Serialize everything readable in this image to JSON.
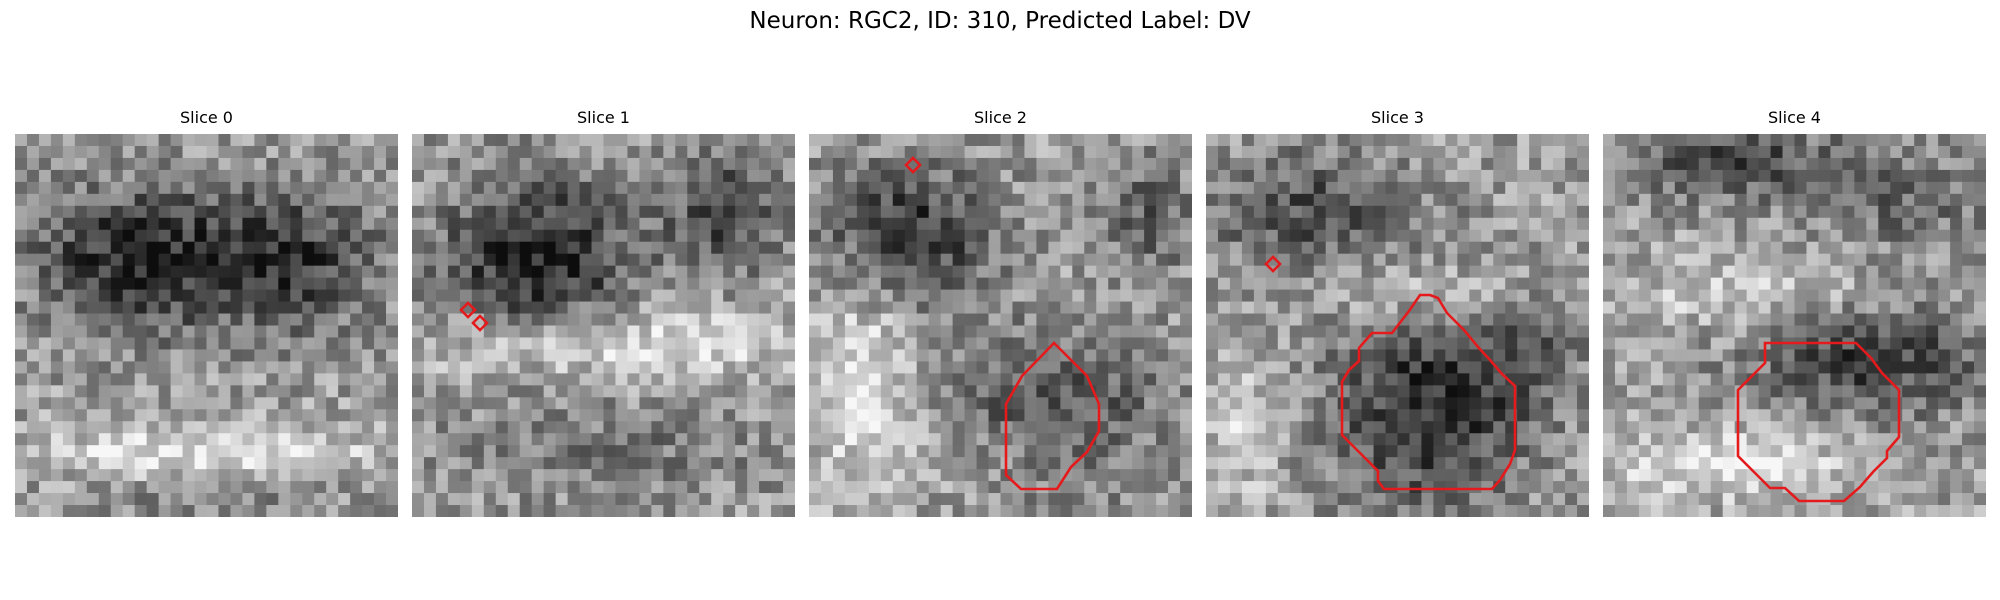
{
  "figure": {
    "title": "Neuron: RGC2, ID: 310, Predicted Label: DV"
  },
  "panels": [
    {
      "title": "Slice 0",
      "has_contour": false,
      "markers": 0
    },
    {
      "title": "Slice 1",
      "has_contour": false,
      "markers": 2
    },
    {
      "title": "Slice 2",
      "has_contour": true,
      "markers": 1
    },
    {
      "title": "Slice 3",
      "has_contour": true,
      "markers": 1
    },
    {
      "title": "Slice 4",
      "has_contour": true,
      "markers": 0
    }
  ],
  "colors": {
    "overlay": "#e41a1c",
    "background": "#ffffff"
  },
  "image_grid": {
    "cells_per_side": 32,
    "colormap": "gray"
  }
}
